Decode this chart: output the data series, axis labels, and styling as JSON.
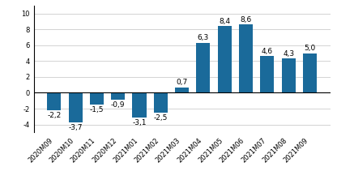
{
  "categories": [
    "2020M09",
    "2020M10",
    "2020M11",
    "2020M12",
    "2021M01",
    "2021M02",
    "2021M03",
    "2021M04",
    "2021M05",
    "2021M06",
    "2021M07",
    "2021M08",
    "2021M09"
  ],
  "values": [
    -2.2,
    -3.7,
    -1.5,
    -0.9,
    -3.1,
    -2.5,
    0.7,
    6.3,
    8.4,
    8.6,
    4.6,
    4.3,
    5.0
  ],
  "bar_color": "#1a6a9a",
  "ylim": [
    -5,
    11
  ],
  "yticks": [
    -4,
    -2,
    0,
    2,
    4,
    6,
    8,
    10
  ],
  "tick_fontsize": 6.0,
  "bar_width": 0.65,
  "value_label_fontsize": 6.5
}
